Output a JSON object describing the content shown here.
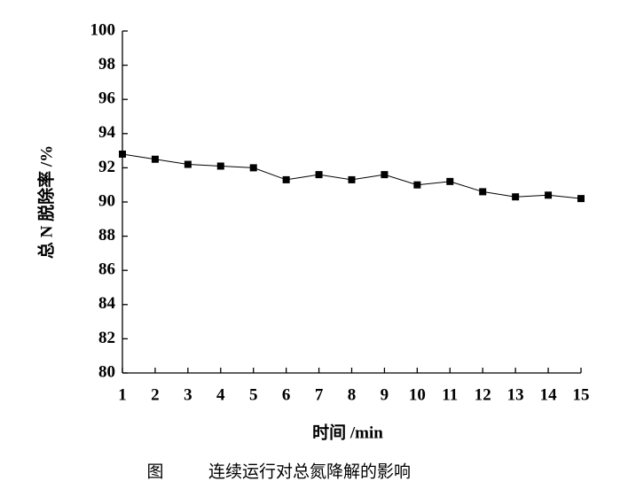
{
  "chart_data": {
    "type": "line",
    "x_label": "时间 /min",
    "y_label": "总 N 脱除率 /%",
    "figure_label": "图",
    "caption": "连续运行对总氮降解的影响",
    "x": [
      1,
      2,
      3,
      4,
      5,
      6,
      7,
      8,
      9,
      10,
      11,
      12,
      13,
      14,
      15
    ],
    "series": [
      {
        "color": "#000000",
        "values": [
          92.8,
          92.5,
          92.2,
          92.1,
          92.0,
          91.3,
          91.6,
          91.3,
          91.6,
          91.0,
          91.2,
          90.6,
          90.3,
          90.4,
          90.2
        ]
      }
    ],
    "xlim": [
      1,
      15
    ],
    "xticks": [
      1,
      2,
      3,
      4,
      5,
      6,
      7,
      8,
      9,
      10,
      11,
      12,
      13,
      14,
      15
    ],
    "ylim": [
      80,
      100
    ],
    "yticks": [
      80,
      82,
      84,
      86,
      88,
      90,
      92,
      94,
      96,
      98,
      100
    ],
    "grid": false,
    "marker": "square"
  }
}
